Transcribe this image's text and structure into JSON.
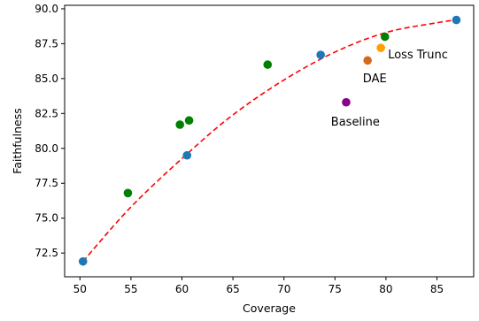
{
  "chart_data": {
    "type": "scatter",
    "xlabel": "Coverage",
    "ylabel": "Faithfulness",
    "xlim": [
      48.5,
      88.6
    ],
    "ylim": [
      70.8,
      90.25
    ],
    "x_ticks": [
      50,
      55,
      60,
      65,
      70,
      75,
      80,
      85
    ],
    "y_ticks": [
      72.5,
      75.0,
      77.5,
      80.0,
      82.5,
      85.0,
      87.5,
      90.0
    ],
    "grid": false,
    "series": [
      {
        "color": "#1f77b4",
        "points": [
          {
            "x": 50.3,
            "y": 71.9
          },
          {
            "x": 60.5,
            "y": 79.5
          },
          {
            "x": 73.6,
            "y": 86.7
          },
          {
            "x": 86.9,
            "y": 89.2
          }
        ]
      },
      {
        "color": "#008000",
        "points": [
          {
            "x": 54.7,
            "y": 76.8
          },
          {
            "x": 59.8,
            "y": 81.7
          },
          {
            "x": 60.7,
            "y": 82.0
          },
          {
            "x": 68.4,
            "y": 86.0
          },
          {
            "x": 79.9,
            "y": 88.0
          }
        ]
      },
      {
        "name": "Loss Trunc",
        "color": "#ff9f00",
        "points": [
          {
            "x": 79.5,
            "y": 87.2
          }
        ]
      },
      {
        "name": "DAE",
        "color": "#d2691e",
        "points": [
          {
            "x": 78.2,
            "y": 86.3
          }
        ]
      },
      {
        "name": "Baseline",
        "color": "#8b008b",
        "points": [
          {
            "x": 76.1,
            "y": 83.3
          }
        ]
      }
    ],
    "fit_curve": {
      "style": "dashed",
      "color": "#ff0000",
      "points": [
        {
          "x": 50.3,
          "y": 71.9
        },
        {
          "x": 55.0,
          "y": 75.8
        },
        {
          "x": 60.5,
          "y": 79.6
        },
        {
          "x": 65.0,
          "y": 82.4
        },
        {
          "x": 70.0,
          "y": 84.9
        },
        {
          "x": 75.0,
          "y": 86.9
        },
        {
          "x": 80.0,
          "y": 88.3
        },
        {
          "x": 85.0,
          "y": 89.0
        },
        {
          "x": 86.9,
          "y": 89.2
        }
      ]
    },
    "annotations": [
      {
        "text": "Loss Trunc",
        "x": 80.2,
        "y": 86.7,
        "anchor": "start"
      },
      {
        "text": "DAE",
        "x": 78.9,
        "y": 85.0,
        "anchor": "middle"
      },
      {
        "text": "Baseline",
        "x": 77.0,
        "y": 81.9,
        "anchor": "middle"
      }
    ]
  }
}
